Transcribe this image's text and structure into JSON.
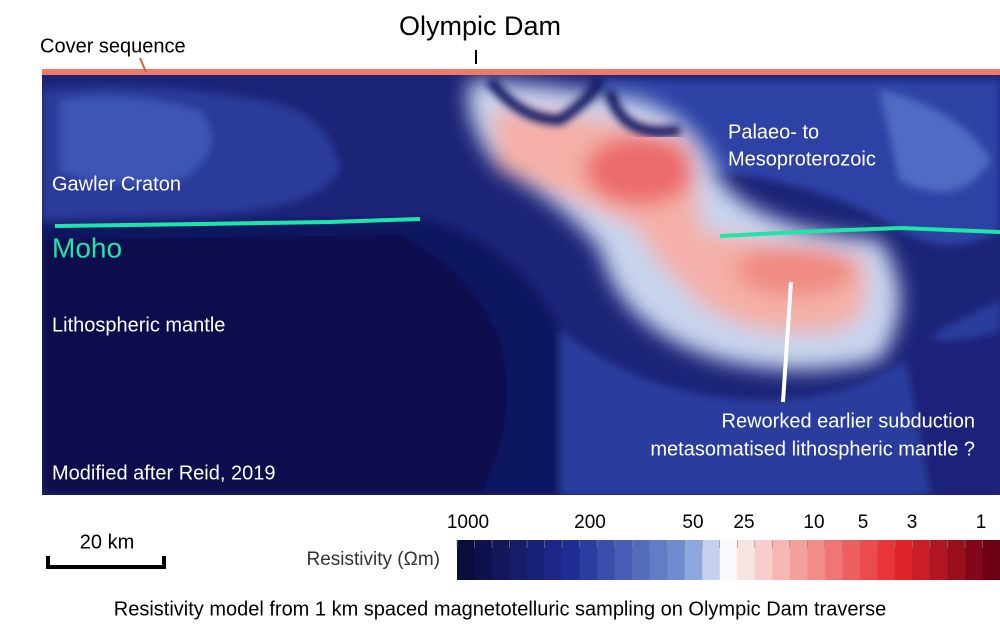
{
  "title": "Olympic Dam",
  "labels": {
    "cover": "Cover sequence",
    "gawler": "Gawler Craton",
    "moho": "Moho",
    "lithospheric": "Lithospheric mantle",
    "palaeo": [
      "Palaeo- to",
      "Mesoproterozoic"
    ],
    "reworked": [
      "Reworked earlier subduction",
      "metasomatised lithospheric mantle ?"
    ],
    "credit": "Modified after Reid, 2019"
  },
  "scale_bar": "20 km",
  "colorbar": {
    "label": "Resistivity (Ωm)",
    "ticks": [
      "1000",
      "200",
      "50",
      "25",
      "10",
      "5",
      "3",
      "1"
    ]
  },
  "caption": "Resistivity model from 1 km spaced magnetotelluric sampling on Olympic Dam traverse"
}
